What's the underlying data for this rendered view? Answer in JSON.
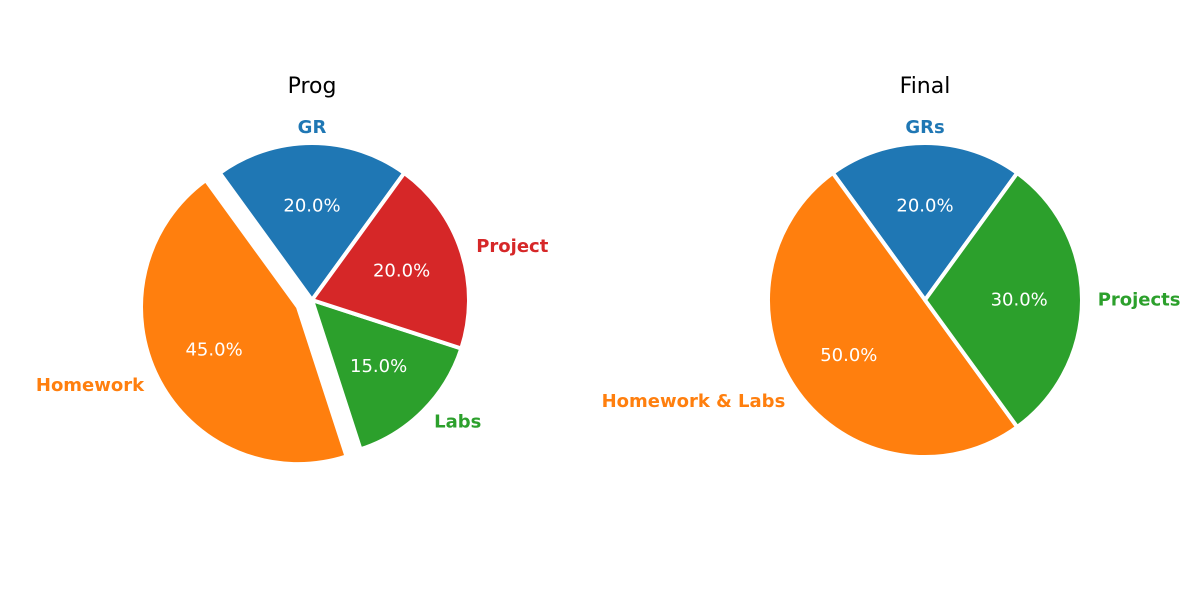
{
  "chart_data": [
    {
      "type": "pie",
      "title": "Prog",
      "slices": [
        {
          "label": "GR",
          "value": 20.0,
          "pct_label": "20.0%",
          "color": "#1f77b4",
          "exploded": false
        },
        {
          "label": "Homework",
          "value": 45.0,
          "pct_label": "45.0%",
          "color": "#ff7f0e",
          "exploded": true
        },
        {
          "label": "Labs",
          "value": 15.0,
          "pct_label": "15.0%",
          "color": "#2ca02c",
          "exploded": false
        },
        {
          "label": "Project",
          "value": 20.0,
          "pct_label": "20.0%",
          "color": "#d62728",
          "exploded": false
        }
      ],
      "start_angle_deg": 54,
      "direction": "counterclockwise"
    },
    {
      "type": "pie",
      "title": "Final",
      "slices": [
        {
          "label": "GRs",
          "value": 20.0,
          "pct_label": "20.0%",
          "color": "#1f77b4",
          "exploded": false
        },
        {
          "label": "Homework & Labs",
          "value": 50.0,
          "pct_label": "50.0%",
          "color": "#ff7f0e",
          "exploded": false
        },
        {
          "label": "Projects",
          "value": 30.0,
          "pct_label": "30.0%",
          "color": "#2ca02c",
          "exploded": false
        }
      ],
      "start_angle_deg": 54,
      "direction": "counterclockwise"
    }
  ]
}
